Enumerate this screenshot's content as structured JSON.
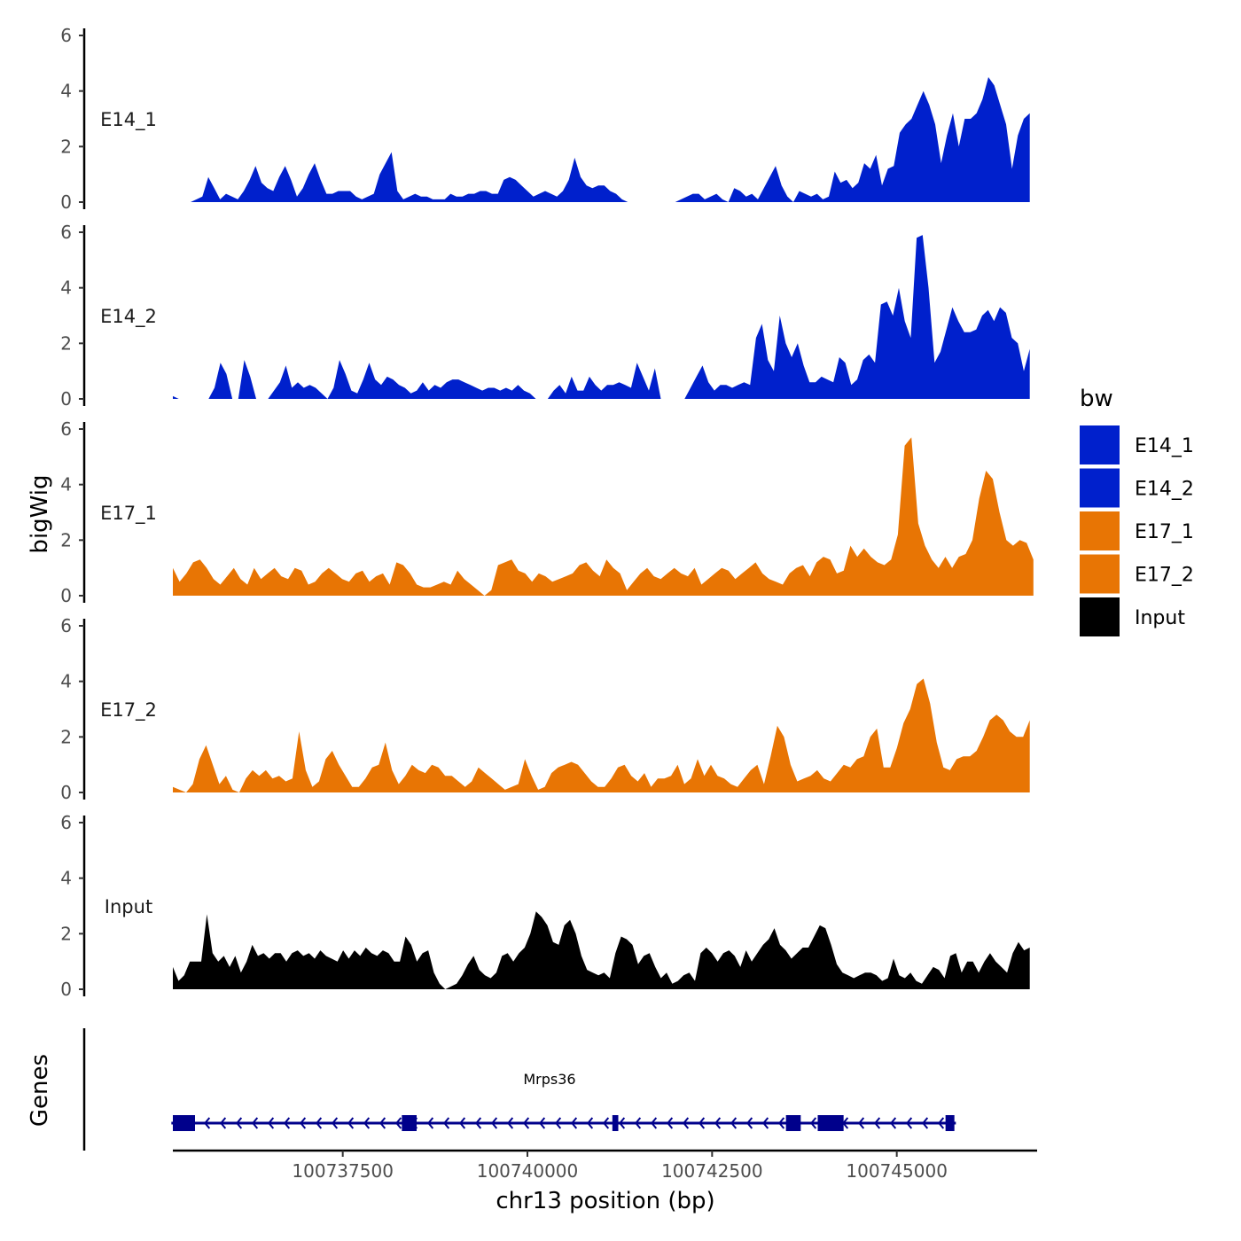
{
  "chart_data": {
    "type": "area",
    "ylabel": "bigWig",
    "xlabel": "chr13 position (bp)",
    "genes_label": "Genes",
    "xlim": [
      100735200,
      100746900
    ],
    "x_ticks": [
      100737500,
      100740000,
      100742500,
      100745000
    ],
    "x_tick_labels": [
      "100737500",
      "100740000",
      "100742500",
      "100745000"
    ],
    "ylim": [
      0,
      6
    ],
    "y_ticks": [
      0,
      2,
      4,
      6
    ],
    "y_tick_labels": [
      "0",
      "2",
      "4",
      "6"
    ],
    "legend": {
      "title": "bw",
      "entries": [
        {
          "label": "E14_1",
          "color": "#0020CC"
        },
        {
          "label": "E14_2",
          "color": "#0020CC"
        },
        {
          "label": "E17_1",
          "color": "#E87504"
        },
        {
          "label": "E17_2",
          "color": "#E87504"
        },
        {
          "label": "Input",
          "color": "#000000"
        }
      ]
    },
    "series": [
      {
        "name": "E14_1",
        "color": "#0020CC",
        "x_start": 100735200,
        "x_end": 100746800,
        "values": [
          0,
          0,
          0,
          0,
          0.1,
          0.2,
          0.9,
          0.5,
          0.1,
          0.3,
          0.2,
          0.1,
          0.4,
          0.8,
          1.3,
          0.7,
          0.5,
          0.4,
          0.9,
          1.3,
          0.8,
          0.2,
          0.5,
          1.0,
          1.4,
          0.8,
          0.3,
          0.3,
          0.4,
          0.4,
          0.4,
          0.2,
          0.1,
          0.2,
          0.3,
          1.0,
          1.4,
          1.8,
          0.4,
          0.1,
          0.2,
          0.3,
          0.2,
          0.2,
          0.1,
          0.1,
          0.1,
          0.3,
          0.2,
          0.2,
          0.3,
          0.3,
          0.4,
          0.4,
          0.3,
          0.3,
          0.8,
          0.9,
          0.8,
          0.6,
          0.4,
          0.2,
          0.3,
          0.4,
          0.3,
          0.2,
          0.4,
          0.8,
          1.6,
          0.9,
          0.6,
          0.5,
          0.6,
          0.6,
          0.4,
          0.3,
          0.1,
          0,
          0,
          0,
          0,
          0,
          0,
          0,
          0,
          0,
          0.1,
          0.2,
          0.3,
          0.3,
          0.1,
          0.2,
          0.3,
          0.1,
          0,
          0.5,
          0.4,
          0.2,
          0.3,
          0.1,
          0.5,
          0.9,
          1.3,
          0.6,
          0.2,
          0,
          0.4,
          0.3,
          0.2,
          0.3,
          0.1,
          0.2,
          1.1,
          0.7,
          0.8,
          0.5,
          0.7,
          1.4,
          1.2,
          1.7,
          0.6,
          1.2,
          1.3,
          2.5,
          2.8,
          3.0,
          3.5,
          4.0,
          3.5,
          2.8,
          1.4,
          2.4,
          3.2,
          2.0,
          3.0,
          3.0,
          3.2,
          3.7,
          4.5,
          4.2,
          3.5,
          2.8,
          1.2,
          2.4,
          3.0,
          3.2
        ]
      },
      {
        "name": "E14_2",
        "color": "#0020CC",
        "x_start": 100735200,
        "x_end": 100746800,
        "values": [
          0.1,
          0,
          0,
          0,
          0,
          0,
          0,
          0.4,
          1.3,
          0.9,
          0,
          0,
          1.4,
          0.8,
          0,
          0,
          0,
          0.3,
          0.6,
          1.2,
          0.4,
          0.6,
          0.4,
          0.5,
          0.4,
          0.2,
          0,
          0.4,
          1.4,
          0.9,
          0.3,
          0.2,
          0.7,
          1.3,
          0.7,
          0.5,
          0.8,
          0.7,
          0.5,
          0.4,
          0.2,
          0.3,
          0.6,
          0.3,
          0.5,
          0.4,
          0.6,
          0.7,
          0.7,
          0.6,
          0.5,
          0.4,
          0.3,
          0.4,
          0.4,
          0.3,
          0.4,
          0.3,
          0.5,
          0.3,
          0.2,
          0,
          0,
          0,
          0.3,
          0.5,
          0.2,
          0.8,
          0.3,
          0.3,
          0.8,
          0.5,
          0.3,
          0.5,
          0.5,
          0.6,
          0.5,
          0.4,
          1.3,
          0.8,
          0.3,
          1.1,
          0,
          0,
          0,
          0,
          0,
          0.4,
          0.8,
          1.2,
          0.6,
          0.3,
          0.5,
          0.5,
          0.4,
          0.5,
          0.6,
          0.5,
          2.2,
          2.7,
          1.4,
          1.0,
          3.0,
          2.0,
          1.5,
          2.0,
          1.2,
          0.6,
          0.6,
          0.8,
          0.7,
          0.6,
          1.5,
          1.3,
          0.5,
          0.7,
          1.4,
          1.6,
          1.3,
          3.4,
          3.5,
          3.0,
          4.0,
          2.8,
          2.2,
          5.8,
          5.9,
          4.0,
          1.3,
          1.7,
          2.5,
          3.3,
          2.8,
          2.4,
          2.4,
          2.5,
          3.0,
          3.2,
          2.8,
          3.3,
          3.1,
          2.2,
          2.0,
          1.0,
          1.8
        ]
      },
      {
        "name": "E17_1",
        "color": "#E87504",
        "x_start": 100735200,
        "x_end": 100746850,
        "values": [
          1.0,
          0.5,
          0.8,
          1.2,
          1.3,
          1.0,
          0.6,
          0.4,
          0.7,
          1.0,
          0.6,
          0.4,
          1.0,
          0.6,
          0.8,
          1.0,
          0.7,
          0.6,
          1.0,
          0.9,
          0.4,
          0.5,
          0.8,
          1.0,
          0.8,
          0.6,
          0.5,
          0.8,
          0.9,
          0.5,
          0.7,
          0.8,
          0.4,
          1.2,
          1.1,
          0.8,
          0.4,
          0.3,
          0.3,
          0.4,
          0.5,
          0.4,
          0.9,
          0.6,
          0.4,
          0.2,
          0,
          0.2,
          1.1,
          1.2,
          1.3,
          0.9,
          0.8,
          0.5,
          0.8,
          0.7,
          0.5,
          0.6,
          0.7,
          0.8,
          1.1,
          1.2,
          0.9,
          0.7,
          1.3,
          1.0,
          0.8,
          0.2,
          0.5,
          0.8,
          1.0,
          0.7,
          0.6,
          0.8,
          1.0,
          0.8,
          0.7,
          1.0,
          0.4,
          0.6,
          0.8,
          1.0,
          0.9,
          0.6,
          0.8,
          1.0,
          1.2,
          0.8,
          0.6,
          0.5,
          0.4,
          0.8,
          1.0,
          1.1,
          0.7,
          1.2,
          1.4,
          1.3,
          0.8,
          0.9,
          1.8,
          1.4,
          1.7,
          1.4,
          1.2,
          1.1,
          1.3,
          2.2,
          5.4,
          5.7,
          2.6,
          1.8,
          1.3,
          1.0,
          1.4,
          1.0,
          1.4,
          1.5,
          2.0,
          3.5,
          4.5,
          4.2,
          3.0,
          2.0,
          1.8,
          2.0,
          1.9,
          1.3
        ]
      },
      {
        "name": "E17_2",
        "color": "#E87504",
        "x_start": 100735200,
        "x_end": 100746800,
        "values": [
          0.2,
          0.1,
          0,
          0.3,
          1.2,
          1.7,
          1.0,
          0.3,
          0.6,
          0.1,
          0,
          0.5,
          0.8,
          0.6,
          0.8,
          0.5,
          0.6,
          0.4,
          0.5,
          2.2,
          0.8,
          0.2,
          0.4,
          1.2,
          1.5,
          1.0,
          0.6,
          0.2,
          0.2,
          0.5,
          0.9,
          1.0,
          1.8,
          0.8,
          0.3,
          0.6,
          1.0,
          0.8,
          0.7,
          1.0,
          0.9,
          0.6,
          0.6,
          0.4,
          0.2,
          0.4,
          0.9,
          0.7,
          0.5,
          0.3,
          0.1,
          0.2,
          0.3,
          1.2,
          0.6,
          0.1,
          0.2,
          0.7,
          0.9,
          1.0,
          1.1,
          1.0,
          0.7,
          0.4,
          0.2,
          0.2,
          0.5,
          0.9,
          1.0,
          0.6,
          0.4,
          0.7,
          0.2,
          0.5,
          0.5,
          0.6,
          1.0,
          0.3,
          0.5,
          1.2,
          0.6,
          1.0,
          0.6,
          0.5,
          0.3,
          0.2,
          0.5,
          0.8,
          1.0,
          0.3,
          1.3,
          2.4,
          2.0,
          1.0,
          0.4,
          0.5,
          0.6,
          0.8,
          0.5,
          0.4,
          0.7,
          1.0,
          0.9,
          1.2,
          1.3,
          2.0,
          2.3,
          0.9,
          0.9,
          1.6,
          2.5,
          3.0,
          3.9,
          4.1,
          3.2,
          1.8,
          0.9,
          0.8,
          1.2,
          1.3,
          1.3,
          1.5,
          2.0,
          2.6,
          2.8,
          2.6,
          2.2,
          2.0,
          2.0,
          2.6
        ]
      },
      {
        "name": "Input",
        "color": "#000000",
        "x_start": 100735200,
        "x_end": 100746800,
        "values": [
          0.8,
          0.3,
          0.5,
          1.0,
          1.0,
          1.0,
          2.7,
          1.3,
          1.0,
          1.2,
          0.8,
          1.2,
          0.6,
          1.0,
          1.6,
          1.2,
          1.3,
          1.1,
          1.3,
          1.3,
          1.0,
          1.3,
          1.4,
          1.2,
          1.3,
          1.1,
          1.4,
          1.2,
          1.1,
          1.0,
          1.4,
          1.1,
          1.4,
          1.2,
          1.5,
          1.3,
          1.2,
          1.4,
          1.3,
          1.0,
          1.0,
          1.9,
          1.6,
          1.0,
          1.3,
          1.4,
          0.6,
          0.2,
          0,
          0.1,
          0.2,
          0.5,
          0.9,
          1.2,
          0.7,
          0.5,
          0.4,
          0.6,
          1.2,
          1.3,
          1.0,
          1.3,
          1.5,
          2.0,
          2.8,
          2.6,
          2.3,
          1.7,
          1.6,
          2.3,
          2.5,
          2.0,
          1.2,
          0.7,
          0.6,
          0.5,
          0.6,
          0.4,
          1.3,
          1.9,
          1.8,
          1.6,
          0.9,
          1.2,
          1.3,
          0.8,
          0.4,
          0.6,
          0.2,
          0.3,
          0.5,
          0.6,
          0.3,
          1.3,
          1.5,
          1.3,
          1.0,
          1.3,
          1.4,
          1.2,
          0.8,
          1.4,
          1.0,
          1.3,
          1.6,
          1.8,
          2.2,
          1.6,
          1.4,
          1.1,
          1.3,
          1.5,
          1.5,
          1.9,
          2.3,
          2.2,
          1.6,
          0.9,
          0.6,
          0.5,
          0.4,
          0.5,
          0.6,
          0.6,
          0.5,
          0.3,
          0.4,
          1.1,
          0.5,
          0.4,
          0.6,
          0.3,
          0.2,
          0.5,
          0.8,
          0.7,
          0.4,
          1.2,
          1.3,
          0.6,
          1.0,
          1.0,
          0.6,
          1.0,
          1.3,
          1.0,
          0.8,
          0.6,
          1.3,
          1.7,
          1.4,
          1.5
        ]
      }
    ],
    "gene_track": {
      "name": "Mrps36",
      "color": "#00008B",
      "strand": "-",
      "line_start": 100735180,
      "line_end": 100745800,
      "label_x": 100740300,
      "exons": [
        {
          "start": 100735200,
          "end": 100735500
        },
        {
          "start": 100738300,
          "end": 100738500
        },
        {
          "start": 100741150,
          "end": 100741230
        },
        {
          "start": 100743500,
          "end": 100743700
        },
        {
          "start": 100743930,
          "end": 100744280
        },
        {
          "start": 100745660,
          "end": 100745780
        }
      ]
    }
  }
}
